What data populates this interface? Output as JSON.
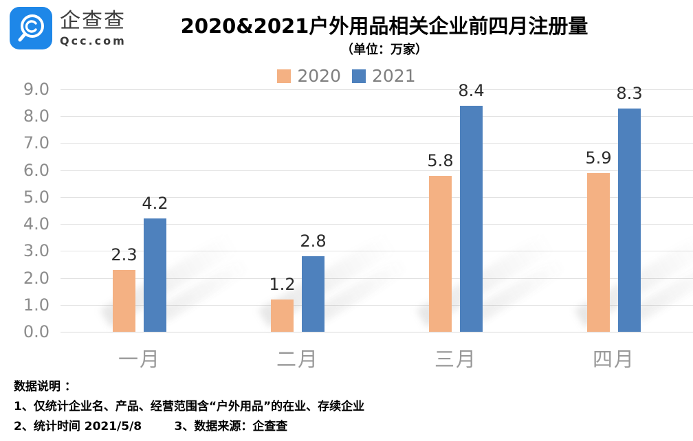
{
  "brand": {
    "logo_text": "企查查",
    "logo_domain": "Qcc.com",
    "logo_color": "#1e87e8"
  },
  "chart_data": {
    "type": "bar",
    "title": "2020&2021户外用品相关企业前四月注册量",
    "unit_label": "（单位：万家）",
    "categories": [
      "一月",
      "二月",
      "三月",
      "四月"
    ],
    "series": [
      {
        "name": "2020",
        "color": "#f4b183",
        "values": [
          2.3,
          1.2,
          5.8,
          5.9
        ]
      },
      {
        "name": "2021",
        "color": "#4e81bd",
        "values": [
          4.2,
          2.8,
          8.4,
          8.3
        ]
      }
    ],
    "ylim": [
      0,
      9
    ],
    "ytick_step": 1,
    "ytick_labels": [
      "0.0",
      "1.0",
      "2.0",
      "3.0",
      "4.0",
      "5.0",
      "6.0",
      "7.0",
      "8.0",
      "9.0"
    ],
    "grid": true,
    "legend_position": "top",
    "value_labels": true
  },
  "footer": {
    "lines": [
      "数据说明 ：",
      "1、仅统计企业名、产品、经营范围含“户外用品”的在业、存续企业",
      "2、统计时间 2021/5/8        3、数据来源：企查查"
    ]
  }
}
